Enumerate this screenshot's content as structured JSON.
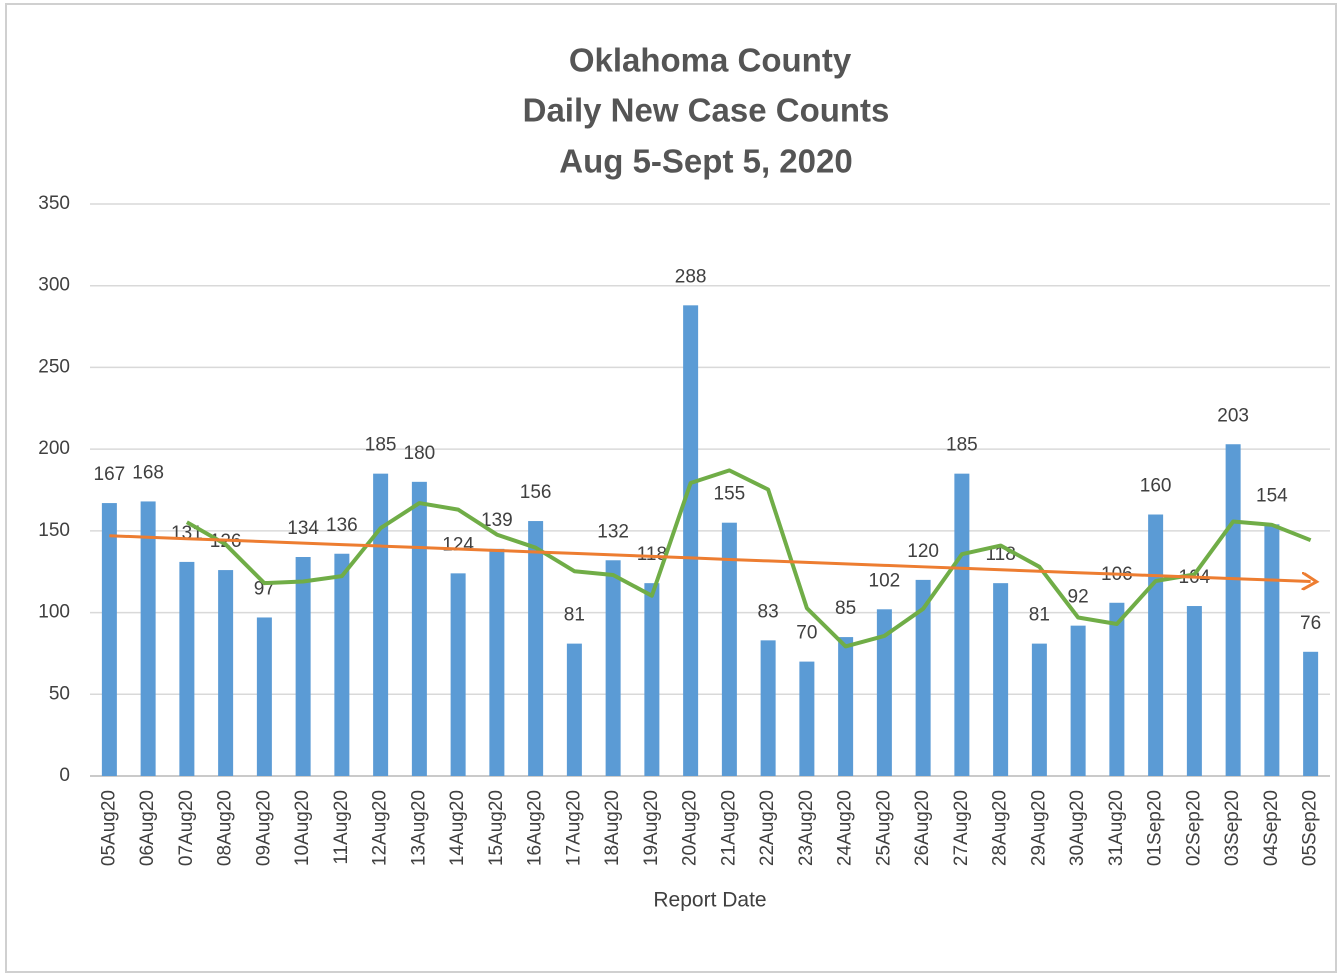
{
  "chart_data": {
    "type": "bar",
    "title": [
      "Oklahoma County",
      "Daily New Case Counts",
      "Aug 5-Sept 5, 2020"
    ],
    "x_label": "Report Date",
    "categories": [
      "05Aug20",
      "06Aug20",
      "07Aug20",
      "08Aug20",
      "09Aug20",
      "10Aug20",
      "11Aug20",
      "12Aug20",
      "13Aug20",
      "14Aug20",
      "15Aug20",
      "16Aug20",
      "17Aug20",
      "18Aug20",
      "19Aug20",
      "20Aug20",
      "21Aug20",
      "22Aug20",
      "23Aug20",
      "24Aug20",
      "25Aug20",
      "26Aug20",
      "27Aug20",
      "28Aug20",
      "29Aug20",
      "30Aug20",
      "31Aug20",
      "01Sep20",
      "02Sep20",
      "03Sep20",
      "04Sep20",
      "05Sep20"
    ],
    "values": [
      167,
      168,
      131,
      126,
      97,
      134,
      136,
      185,
      180,
      124,
      139,
      156,
      81,
      132,
      118,
      288,
      155,
      83,
      70,
      85,
      102,
      120,
      185,
      118,
      81,
      92,
      106,
      160,
      104,
      203,
      154,
      76
    ],
    "color": "#5b9bd5",
    "lines": [
      {
        "color": "#70ad47",
        "values": [
          null,
          null,
          155.3,
          141.7,
          118,
          119,
          122.3,
          151.7,
          167,
          163,
          147.7,
          139.7,
          125.3,
          123,
          110.3,
          179.3,
          187,
          175.3,
          102.7,
          79.3,
          85.7,
          102.3,
          135.7,
          141,
          128,
          97,
          93,
          119.3,
          123.3,
          155.7,
          153.7,
          144.3
        ]
      },
      {
        "color": "#ed7d31",
        "arrow": true,
        "values": [
          147,
          146.1,
          145.2,
          144.3,
          143.4,
          142.5,
          141.6,
          140.7,
          139.8,
          138.9,
          138,
          137.1,
          136.2,
          135.3,
          134.4,
          133.5,
          132.5,
          131.6,
          130.7,
          129.8,
          128.9,
          128,
          127.1,
          126.2,
          125.3,
          124.4,
          123.5,
          122.6,
          121.7,
          120.8,
          119.9,
          119
        ]
      }
    ],
    "ylim": [
      0,
      350
    ],
    "yticks": [
      0,
      50,
      100,
      150,
      200,
      250,
      300,
      350
    ],
    "grid": true
  }
}
